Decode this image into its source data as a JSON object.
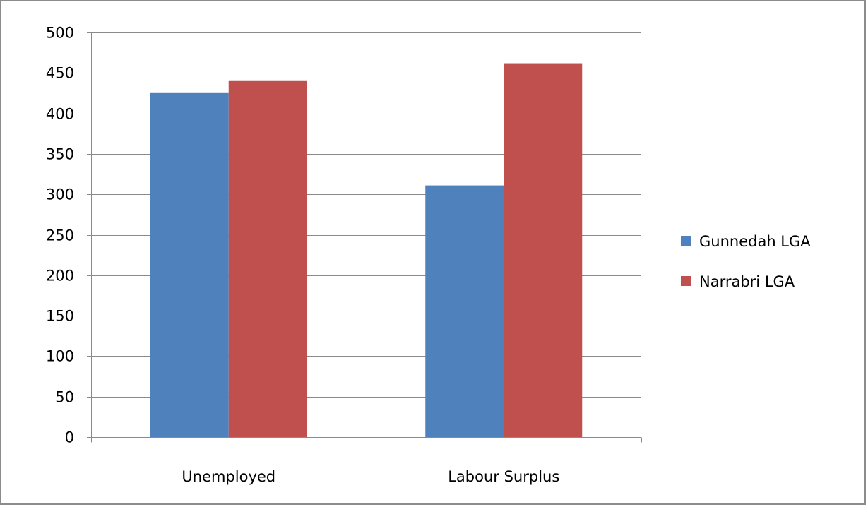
{
  "chart_data": {
    "type": "bar",
    "title": "",
    "xlabel": "",
    "ylabel": "",
    "categories": [
      "Unemployed",
      "Labour Surplus"
    ],
    "series": [
      {
        "name": "Gunnedah LGA",
        "values": [
          426,
          311
        ],
        "color": "#4F81BD"
      },
      {
        "name": "Narrabri LGA",
        "values": [
          440,
          462
        ],
        "color": "#C0504D"
      }
    ],
    "ylim": [
      0,
      500
    ],
    "yticks": [
      0,
      50,
      100,
      150,
      200,
      250,
      300,
      350,
      400,
      450,
      500
    ],
    "grid": true,
    "legend_position": "right"
  }
}
